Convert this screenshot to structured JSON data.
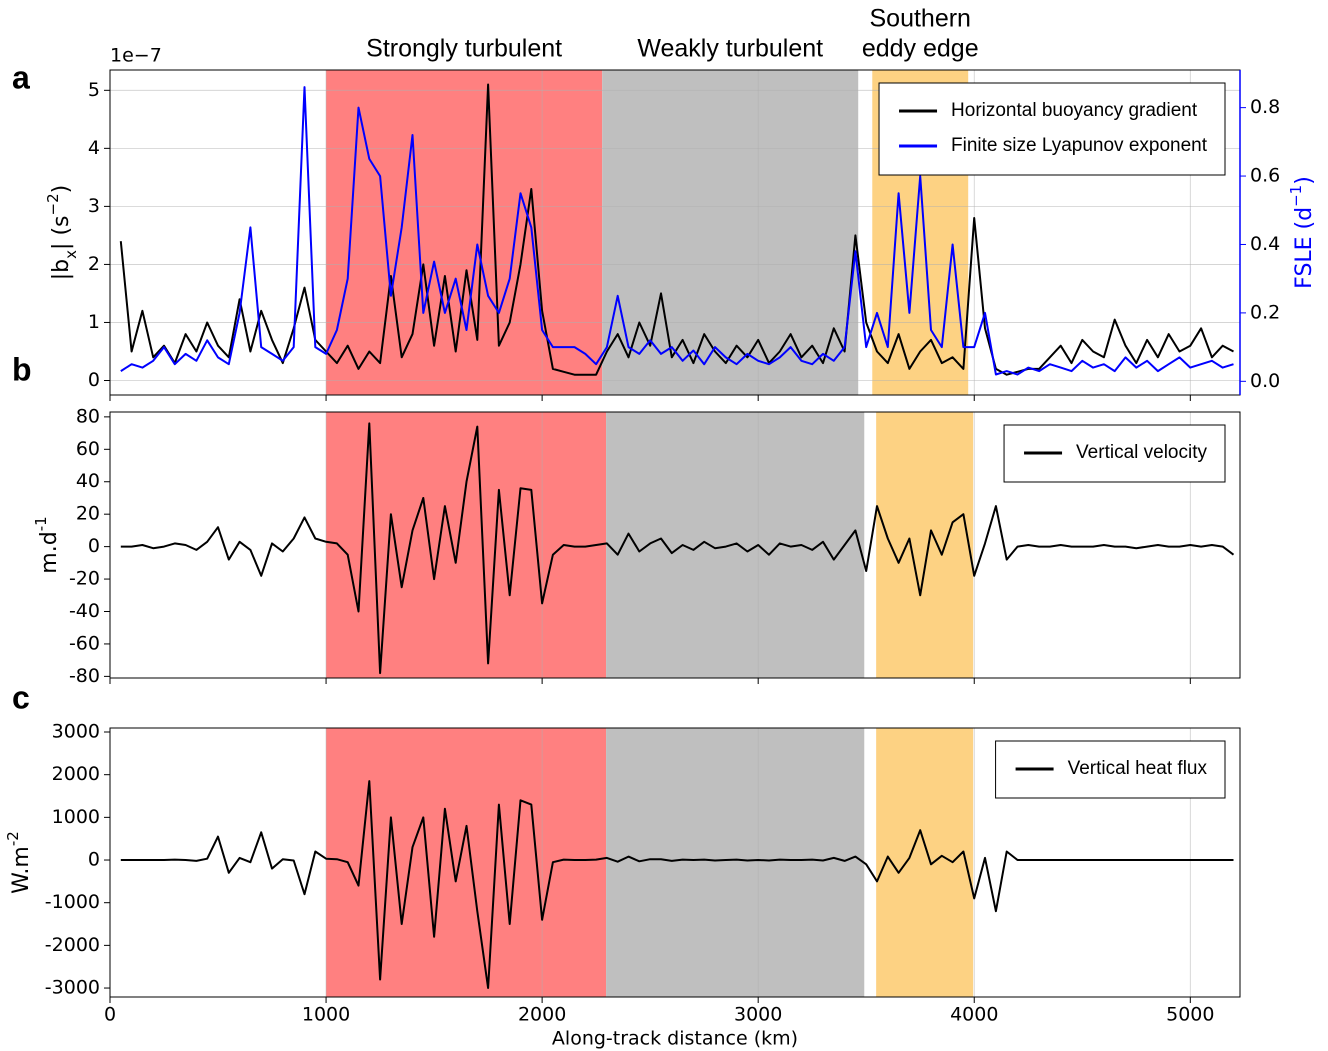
{
  "chart_data": [
    {
      "type": "line",
      "panel_label": "a",
      "offset_text": "1e−7",
      "ylabel": [
        {
          "text": "|b"
        },
        {
          "text": "x",
          "shift": "sub"
        },
        {
          "text": "| (s"
        },
        {
          "text": "−2",
          "shift": "super"
        },
        {
          "text": ")"
        }
      ],
      "y2label": [
        {
          "text": "FSLE (d"
        },
        {
          "text": "−1",
          "shift": "super"
        },
        {
          "text": ")"
        }
      ],
      "y2color": "#0000ff",
      "regions": [
        {
          "label": [
            "Strongly turbulent"
          ],
          "xlim": [
            1000,
            2278
          ],
          "color": "#ff8080"
        },
        {
          "label": [
            "Weakly turbulent"
          ],
          "xlim": [
            2278,
            3463
          ],
          "color": "#bfbfbf"
        },
        {
          "label": [
            "Southern",
            "eddy edge"
          ],
          "xlim": [
            3528,
            3972
          ],
          "color": "#fdd283"
        }
      ],
      "xlim": [
        0,
        5230
      ],
      "xticks": [
        0,
        1000,
        2000,
        3000,
        4000,
        5000
      ],
      "ylim": [
        -0.25,
        5.35
      ],
      "yticks": [
        0,
        1,
        2,
        3,
        4,
        5
      ],
      "y2lim": [
        -0.04,
        0.91
      ],
      "y2ticks": [
        {
          "value": 0,
          "label": "0.0"
        },
        0.2,
        0.4,
        0.6,
        0.8
      ],
      "grid": "both",
      "legend": "upper right",
      "x": [
        50,
        100,
        150,
        200,
        250,
        300,
        350,
        400,
        450,
        500,
        550,
        600,
        650,
        700,
        750,
        800,
        850,
        900,
        950,
        1000,
        1050,
        1100,
        1150,
        1200,
        1250,
        1300,
        1350,
        1400,
        1450,
        1500,
        1550,
        1600,
        1650,
        1700,
        1750,
        1800,
        1850,
        1900,
        1950,
        2000,
        2050,
        2100,
        2150,
        2200,
        2250,
        2300,
        2350,
        2400,
        2450,
        2500,
        2550,
        2600,
        2650,
        2700,
        2750,
        2800,
        2850,
        2900,
        2950,
        3000,
        3050,
        3100,
        3150,
        3200,
        3250,
        3300,
        3350,
        3400,
        3450,
        3500,
        3550,
        3600,
        3650,
        3700,
        3750,
        3800,
        3850,
        3900,
        3950,
        4000,
        4050,
        4100,
        4150,
        4200,
        4250,
        4300,
        4350,
        4400,
        4450,
        4500,
        4550,
        4600,
        4650,
        4700,
        4750,
        4800,
        4850,
        4900,
        4950,
        5000,
        5050,
        5100,
        5150,
        5200
      ],
      "series": [
        {
          "name": "Horizontal buoyancy gradient",
          "color": "#000000",
          "values": [
            2.4,
            0.5,
            1.2,
            0.4,
            0.6,
            0.3,
            0.8,
            0.5,
            1.0,
            0.6,
            0.4,
            1.4,
            0.5,
            1.2,
            0.7,
            0.3,
            0.9,
            1.6,
            0.7,
            0.5,
            0.3,
            0.6,
            0.2,
            0.5,
            0.3,
            1.8,
            0.4,
            0.8,
            2.0,
            0.6,
            1.8,
            0.5,
            1.9,
            0.7,
            5.1,
            0.6,
            1.0,
            2.0,
            3.3,
            1.2,
            0.2,
            0.15,
            0.1,
            0.1,
            0.1,
            0.5,
            0.8,
            0.4,
            1.0,
            0.6,
            1.5,
            0.4,
            0.7,
            0.3,
            0.8,
            0.5,
            0.3,
            0.6,
            0.4,
            0.7,
            0.3,
            0.5,
            0.8,
            0.4,
            0.6,
            0.3,
            0.9,
            0.5,
            2.5,
            1.0,
            0.5,
            0.3,
            0.8,
            0.2,
            0.5,
            0.7,
            0.3,
            0.4,
            0.2,
            2.8,
            0.9,
            0.2,
            0.1,
            0.15,
            0.2,
            0.2,
            0.4,
            0.6,
            0.3,
            0.7,
            0.5,
            0.4,
            1.05,
            0.6,
            0.3,
            0.7,
            0.4,
            0.8,
            0.5,
            0.6,
            0.9,
            0.4,
            0.6,
            0.5
          ]
        },
        {
          "name": "Finite size Lyapunov exponent",
          "color": "#0000ff",
          "axis": "y2",
          "values": [
            0.03,
            0.05,
            0.04,
            0.06,
            0.1,
            0.05,
            0.08,
            0.06,
            0.12,
            0.07,
            0.05,
            0.2,
            0.45,
            0.1,
            0.08,
            0.06,
            0.1,
            0.86,
            0.1,
            0.08,
            0.15,
            0.3,
            0.8,
            0.65,
            0.6,
            0.25,
            0.45,
            0.72,
            0.2,
            0.35,
            0.2,
            0.3,
            0.15,
            0.4,
            0.25,
            0.2,
            0.3,
            0.55,
            0.45,
            0.15,
            0.1,
            0.1,
            0.1,
            0.08,
            0.05,
            0.1,
            0.25,
            0.1,
            0.08,
            0.12,
            0.08,
            0.1,
            0.06,
            0.09,
            0.05,
            0.1,
            0.07,
            0.05,
            0.08,
            0.06,
            0.05,
            0.07,
            0.1,
            0.06,
            0.05,
            0.08,
            0.06,
            0.1,
            0.38,
            0.1,
            0.2,
            0.1,
            0.55,
            0.2,
            0.6,
            0.15,
            0.1,
            0.4,
            0.1,
            0.1,
            0.2,
            0.02,
            0.03,
            0.02,
            0.04,
            0.03,
            0.05,
            0.04,
            0.03,
            0.06,
            0.04,
            0.05,
            0.03,
            0.07,
            0.04,
            0.06,
            0.03,
            0.05,
            0.07,
            0.04,
            0.05,
            0.06,
            0.04,
            0.05
          ]
        }
      ]
    },
    {
      "type": "line",
      "panel_label": "b",
      "ylabel": [
        {
          "text": "m.d"
        },
        {
          "text": "-1",
          "shift": "super"
        }
      ],
      "regions": [
        {
          "xlim": [
            1000,
            2296
          ],
          "color": "#ff8080"
        },
        {
          "xlim": [
            2296,
            3491
          ],
          "color": "#bfbfbf"
        },
        {
          "xlim": [
            3546,
            3995
          ],
          "color": "#fdd283"
        }
      ],
      "xlim": [
        0,
        5230
      ],
      "xticks": [
        0,
        1000,
        2000,
        3000,
        4000,
        5000
      ],
      "ylim": [
        -81,
        83
      ],
      "yticks": [
        -80,
        -60,
        -40,
        -20,
        0,
        20,
        40,
        60,
        80
      ],
      "grid": "x",
      "legend": "upper right",
      "x": [
        50,
        100,
        150,
        200,
        250,
        300,
        350,
        400,
        450,
        500,
        550,
        600,
        650,
        700,
        750,
        800,
        850,
        900,
        950,
        1000,
        1050,
        1100,
        1150,
        1200,
        1250,
        1300,
        1350,
        1400,
        1450,
        1500,
        1550,
        1600,
        1650,
        1700,
        1750,
        1800,
        1850,
        1900,
        1950,
        2000,
        2050,
        2100,
        2150,
        2200,
        2250,
        2300,
        2350,
        2400,
        2450,
        2500,
        2550,
        2600,
        2650,
        2700,
        2750,
        2800,
        2850,
        2900,
        2950,
        3000,
        3050,
        3100,
        3150,
        3200,
        3250,
        3300,
        3350,
        3400,
        3450,
        3500,
        3550,
        3600,
        3650,
        3700,
        3750,
        3800,
        3850,
        3900,
        3950,
        4000,
        4050,
        4100,
        4150,
        4200,
        4250,
        4300,
        4350,
        4400,
        4450,
        4500,
        4550,
        4600,
        4650,
        4700,
        4750,
        4800,
        4850,
        4900,
        4950,
        5000,
        5050,
        5100,
        5150,
        5200
      ],
      "series": [
        {
          "name": "Vertical velocity",
          "color": "#000000",
          "values": [
            0,
            0,
            1,
            -1,
            0,
            2,
            1,
            -2,
            3,
            12,
            -8,
            3,
            -2,
            -18,
            2,
            -3,
            5,
            18,
            5,
            3,
            2,
            -5,
            -40,
            76,
            -78,
            20,
            -25,
            10,
            30,
            -20,
            25,
            -10,
            40,
            74,
            -72,
            35,
            -30,
            36,
            35,
            -35,
            -5,
            1,
            0,
            0,
            1,
            2,
            -5,
            8,
            -3,
            2,
            5,
            -4,
            1,
            -2,
            3,
            -1,
            0,
            2,
            -3,
            1,
            -5,
            2,
            0,
            1,
            -2,
            3,
            -8,
            1,
            10,
            -15,
            25,
            5,
            -10,
            5,
            -30,
            10,
            -5,
            15,
            20,
            -18,
            2,
            25,
            -8,
            0,
            1,
            0,
            0,
            1,
            0,
            0,
            0,
            1,
            0,
            0,
            -1,
            0,
            1,
            0,
            0,
            1,
            0,
            1,
            0,
            -5
          ]
        }
      ]
    },
    {
      "type": "line",
      "panel_label": "c",
      "ylabel": [
        {
          "text": "W.m"
        },
        {
          "text": "-2",
          "shift": "super"
        }
      ],
      "xlabel": "Along-track distance (km)",
      "regions": [
        {
          "xlim": [
            1000,
            2296
          ],
          "color": "#ff8080"
        },
        {
          "xlim": [
            2296,
            3491
          ],
          "color": "#bfbfbf"
        },
        {
          "xlim": [
            3546,
            3995
          ],
          "color": "#fdd283"
        }
      ],
      "xlim": [
        0,
        5230
      ],
      "xticks": [
        0,
        1000,
        2000,
        3000,
        4000,
        5000
      ],
      "ylim": [
        -3210,
        3094
      ],
      "yticks": [
        -3000,
        -2000,
        -1000,
        0,
        1000,
        2000,
        3000
      ],
      "grid": "x",
      "legend": "upper right",
      "x": [
        50,
        100,
        150,
        200,
        250,
        300,
        350,
        400,
        450,
        500,
        550,
        600,
        650,
        700,
        750,
        800,
        850,
        900,
        950,
        1000,
        1050,
        1100,
        1150,
        1200,
        1250,
        1300,
        1350,
        1400,
        1450,
        1500,
        1550,
        1600,
        1650,
        1700,
        1750,
        1800,
        1850,
        1900,
        1950,
        2000,
        2050,
        2100,
        2150,
        2200,
        2250,
        2300,
        2350,
        2400,
        2450,
        2500,
        2550,
        2600,
        2650,
        2700,
        2750,
        2800,
        2850,
        2900,
        2950,
        3000,
        3050,
        3100,
        3150,
        3200,
        3250,
        3300,
        3350,
        3400,
        3450,
        3500,
        3550,
        3600,
        3650,
        3700,
        3750,
        3800,
        3850,
        3900,
        3950,
        4000,
        4050,
        4100,
        4150,
        4200,
        4250,
        4300,
        4350,
        4400,
        4450,
        4500,
        4550,
        4600,
        4650,
        4700,
        4750,
        4800,
        4850,
        4900,
        4950,
        5000,
        5050,
        5100,
        5150,
        5200
      ],
      "series": [
        {
          "name": "Vertical heat flux",
          "color": "#000000",
          "values": [
            0,
            0,
            0,
            0,
            0,
            10,
            0,
            -20,
            30,
            550,
            -300,
            50,
            -50,
            650,
            -200,
            20,
            -10,
            -800,
            200,
            30,
            20,
            -50,
            -600,
            1850,
            -2800,
            1000,
            -1500,
            300,
            1000,
            -1800,
            1200,
            -500,
            800,
            -1200,
            -3000,
            1300,
            -1500,
            1400,
            1300,
            -1400,
            -50,
            10,
            0,
            0,
            10,
            50,
            -40,
            80,
            -30,
            20,
            20,
            -20,
            10,
            0,
            10,
            -10,
            0,
            10,
            -10,
            0,
            -10,
            10,
            0,
            0,
            10,
            -10,
            50,
            -20,
            80,
            -100,
            -500,
            80,
            -300,
            50,
            700,
            -100,
            100,
            -50,
            200,
            -900,
            50,
            -1200,
            200,
            0,
            0,
            0,
            0,
            0,
            0,
            0,
            0,
            0,
            0,
            0,
            0,
            0,
            0,
            0,
            0,
            0,
            0,
            0,
            0,
            0
          ]
        }
      ]
    }
  ]
}
